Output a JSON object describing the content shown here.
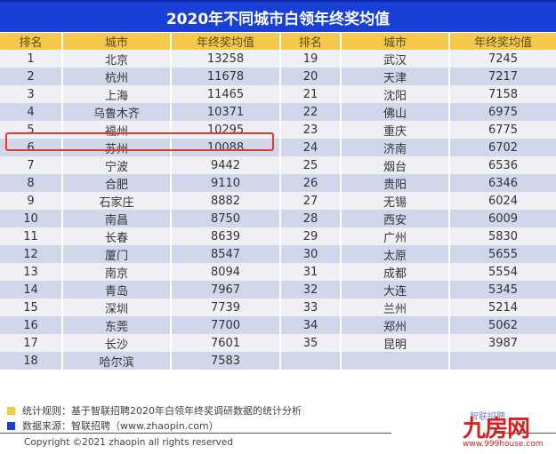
{
  "title": "2020年不同城市白领年终奖均值",
  "headers": [
    "排名",
    "城市",
    "年终奖均值",
    "排名",
    "城市",
    "年终奖均值"
  ],
  "rows": [
    {
      "l": {
        "rank": "1",
        "city": "北京",
        "value": "13258"
      },
      "r": {
        "rank": "19",
        "city": "武汉",
        "value": "7245"
      }
    },
    {
      "l": {
        "rank": "2",
        "city": "杭州",
        "value": "11678"
      },
      "r": {
        "rank": "20",
        "city": "天津",
        "value": "7217"
      }
    },
    {
      "l": {
        "rank": "3",
        "city": "上海",
        "value": "11465"
      },
      "r": {
        "rank": "21",
        "city": "沈阳",
        "value": "7158"
      }
    },
    {
      "l": {
        "rank": "4",
        "city": "乌鲁木齐",
        "value": "10371"
      },
      "r": {
        "rank": "22",
        "city": "佛山",
        "value": "6975"
      }
    },
    {
      "l": {
        "rank": "5",
        "city": "福州",
        "value": "10295"
      },
      "r": {
        "rank": "23",
        "city": "重庆",
        "value": "6775"
      }
    },
    {
      "l": {
        "rank": "6",
        "city": "苏州",
        "value": "10088"
      },
      "r": {
        "rank": "24",
        "city": "济南",
        "value": "6702"
      }
    },
    {
      "l": {
        "rank": "7",
        "city": "宁波",
        "value": "9442"
      },
      "r": {
        "rank": "25",
        "city": "烟台",
        "value": "6536"
      }
    },
    {
      "l": {
        "rank": "8",
        "city": "合肥",
        "value": "9110"
      },
      "r": {
        "rank": "26",
        "city": "贵阳",
        "value": "6346"
      }
    },
    {
      "l": {
        "rank": "9",
        "city": "石家庄",
        "value": "8882"
      },
      "r": {
        "rank": "27",
        "city": "无锡",
        "value": "6024"
      }
    },
    {
      "l": {
        "rank": "10",
        "city": "南昌",
        "value": "8750"
      },
      "r": {
        "rank": "28",
        "city": "西安",
        "value": "6009"
      }
    },
    {
      "l": {
        "rank": "11",
        "city": "长春",
        "value": "8639"
      },
      "r": {
        "rank": "29",
        "city": "广州",
        "value": "5830"
      }
    },
    {
      "l": {
        "rank": "12",
        "city": "厦门",
        "value": "8547"
      },
      "r": {
        "rank": "30",
        "city": "太原",
        "value": "5655"
      }
    },
    {
      "l": {
        "rank": "13",
        "city": "南京",
        "value": "8094"
      },
      "r": {
        "rank": "31",
        "city": "成都",
        "value": "5554"
      }
    },
    {
      "l": {
        "rank": "14",
        "city": "青岛",
        "value": "7967"
      },
      "r": {
        "rank": "32",
        "city": "大连",
        "value": "5345"
      }
    },
    {
      "l": {
        "rank": "15",
        "city": "深圳",
        "value": "7739"
      },
      "r": {
        "rank": "33",
        "city": "兰州",
        "value": "5214"
      }
    },
    {
      "l": {
        "rank": "16",
        "city": "东莞",
        "value": "7700"
      },
      "r": {
        "rank": "34",
        "city": "郑州",
        "value": "5062"
      }
    },
    {
      "l": {
        "rank": "17",
        "city": "长沙",
        "value": "7601"
      },
      "r": {
        "rank": "35",
        "city": "昆明",
        "value": "3987"
      }
    },
    {
      "l": {
        "rank": "18",
        "city": "哈尔滨",
        "value": "7583"
      },
      "r": {
        "rank": "",
        "city": "",
        "value": ""
      }
    }
  ],
  "highlighted_city": "福州",
  "legend": [
    {
      "color": "#f4c84a",
      "text": "统计规则：基于智联招聘2020年白领年终奖调研数据的统计分析"
    },
    {
      "color": "#1a3fd6",
      "text": "数据来源：智联招聘（www.zhaopin.com）"
    }
  ],
  "copyright": "Copyright ©2021 zhaopin all rights reserved",
  "watermark": {
    "brand": "九房网",
    "url": "www.999house.com",
    "logo_text": "智联招聘"
  },
  "colors": {
    "title_bg": "#1a3fd6",
    "header_bg": "#f4c84a",
    "row_light": "#eef0f6",
    "row_dark": "#d0d7ea",
    "highlight": "#e23a2e"
  },
  "chart_data": {
    "type": "table",
    "title": "2020年不同城市白领年终奖均值",
    "columns": [
      "排名",
      "城市",
      "年终奖均值"
    ],
    "categories": [
      "北京",
      "杭州",
      "上海",
      "乌鲁木齐",
      "福州",
      "苏州",
      "宁波",
      "合肥",
      "石家庄",
      "南昌",
      "长春",
      "厦门",
      "南京",
      "青岛",
      "深圳",
      "东莞",
      "长沙",
      "哈尔滨",
      "武汉",
      "天津",
      "沈阳",
      "佛山",
      "重庆",
      "济南",
      "烟台",
      "贵阳",
      "无锡",
      "西安",
      "广州",
      "太原",
      "成都",
      "大连",
      "兰州",
      "郑州",
      "昆明"
    ],
    "ranks": [
      1,
      2,
      3,
      4,
      5,
      6,
      7,
      8,
      9,
      10,
      11,
      12,
      13,
      14,
      15,
      16,
      17,
      18,
      19,
      20,
      21,
      22,
      23,
      24,
      25,
      26,
      27,
      28,
      29,
      30,
      31,
      32,
      33,
      34,
      35
    ],
    "values": [
      13258,
      11678,
      11465,
      10371,
      10295,
      10088,
      9442,
      9110,
      8882,
      8750,
      8639,
      8547,
      8094,
      7967,
      7739,
      7700,
      7601,
      7583,
      7245,
      7217,
      7158,
      6975,
      6775,
      6702,
      6536,
      6346,
      6024,
      6009,
      5830,
      5655,
      5554,
      5345,
      5214,
      5062,
      3987
    ],
    "highlight": "福州"
  }
}
